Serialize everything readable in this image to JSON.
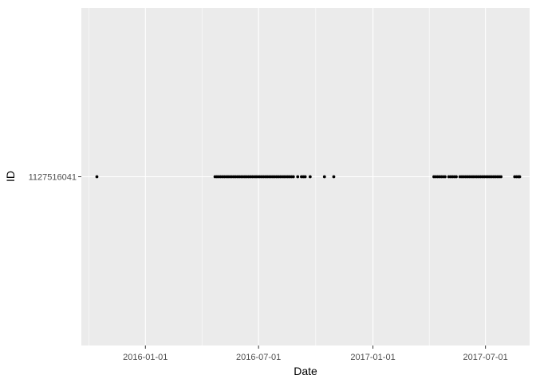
{
  "chart_data": {
    "type": "scatter",
    "title": "",
    "xlabel": "Date",
    "ylabel": "ID",
    "x_axis_type": "date",
    "xlim": [
      "2015-09-20",
      "2017-09-10"
    ],
    "x_ticks": [
      "2016-01-01",
      "2016-07-01",
      "2017-01-01",
      "2017-07-01"
    ],
    "y_categories": [
      "1127516041"
    ],
    "grid": true,
    "legend": "none",
    "colors": {
      "panel_background": "#ebebeb",
      "grid_major": "#ffffff",
      "point": "#000000",
      "text": "#4d4d4d"
    },
    "series": [
      {
        "id": "1127516041",
        "dates": [
          "2015-10-15",
          "2016-04-22",
          "2016-04-25",
          "2016-04-28",
          "2016-05-01",
          "2016-05-04",
          "2016-05-07",
          "2016-05-10",
          "2016-05-13",
          "2016-05-16",
          "2016-05-19",
          "2016-05-22",
          "2016-05-25",
          "2016-05-28",
          "2016-05-31",
          "2016-06-03",
          "2016-06-06",
          "2016-06-09",
          "2016-06-12",
          "2016-06-15",
          "2016-06-18",
          "2016-06-21",
          "2016-06-24",
          "2016-06-27",
          "2016-06-30",
          "2016-07-03",
          "2016-07-06",
          "2016-07-09",
          "2016-07-12",
          "2016-07-15",
          "2016-07-18",
          "2016-07-21",
          "2016-07-24",
          "2016-07-27",
          "2016-07-30",
          "2016-08-02",
          "2016-08-05",
          "2016-08-08",
          "2016-08-11",
          "2016-08-14",
          "2016-08-17",
          "2016-08-20",
          "2016-08-23",
          "2016-08-26",
          "2016-09-02",
          "2016-09-08",
          "2016-09-11",
          "2016-09-14",
          "2016-09-22",
          "2016-10-15",
          "2016-10-30",
          "2017-04-09",
          "2017-04-12",
          "2017-04-15",
          "2017-04-18",
          "2017-04-21",
          "2017-04-24",
          "2017-04-27",
          "2017-05-03",
          "2017-05-06",
          "2017-05-09",
          "2017-05-12",
          "2017-05-15",
          "2017-05-21",
          "2017-05-24",
          "2017-05-27",
          "2017-05-30",
          "2017-06-02",
          "2017-06-05",
          "2017-06-08",
          "2017-06-11",
          "2017-06-14",
          "2017-06-17",
          "2017-06-20",
          "2017-06-23",
          "2017-06-26",
          "2017-06-29",
          "2017-07-02",
          "2017-07-05",
          "2017-07-08",
          "2017-07-11",
          "2017-07-14",
          "2017-07-17",
          "2017-07-20",
          "2017-07-23",
          "2017-07-26",
          "2017-08-17",
          "2017-08-20",
          "2017-08-23",
          "2017-08-25"
        ]
      }
    ]
  }
}
